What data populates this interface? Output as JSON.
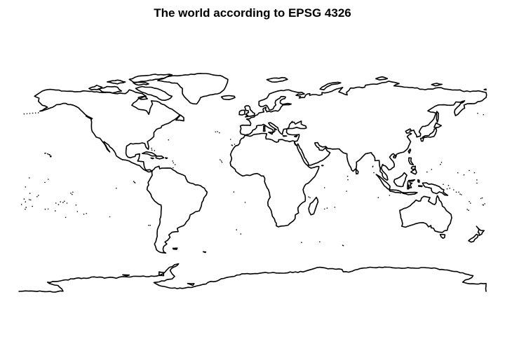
{
  "title": "The world according to EPSG 4326",
  "map": {
    "projection": "EPSG:4326 (plate carrée)",
    "extent": {
      "lon": [
        -180,
        180
      ],
      "lat": [
        -90,
        90
      ]
    },
    "stroke_color": "#000000",
    "background_color": "#ffffff",
    "layers": [
      "coastlines"
    ],
    "features": [
      "north-america",
      "greenland",
      "south-america",
      "iceland",
      "eurasia",
      "africa",
      "madagascar",
      "arabian-peninsula",
      "british-isles",
      "great-britain",
      "ireland",
      "india",
      "sri-lanka",
      "japan",
      "indonesia",
      "borneo",
      "new-guinea",
      "philippines",
      "australia",
      "tasmania",
      "new-zealand",
      "antarctica",
      "canadian-arctic-archipelago",
      "caribbean",
      "pacific-islands"
    ]
  }
}
